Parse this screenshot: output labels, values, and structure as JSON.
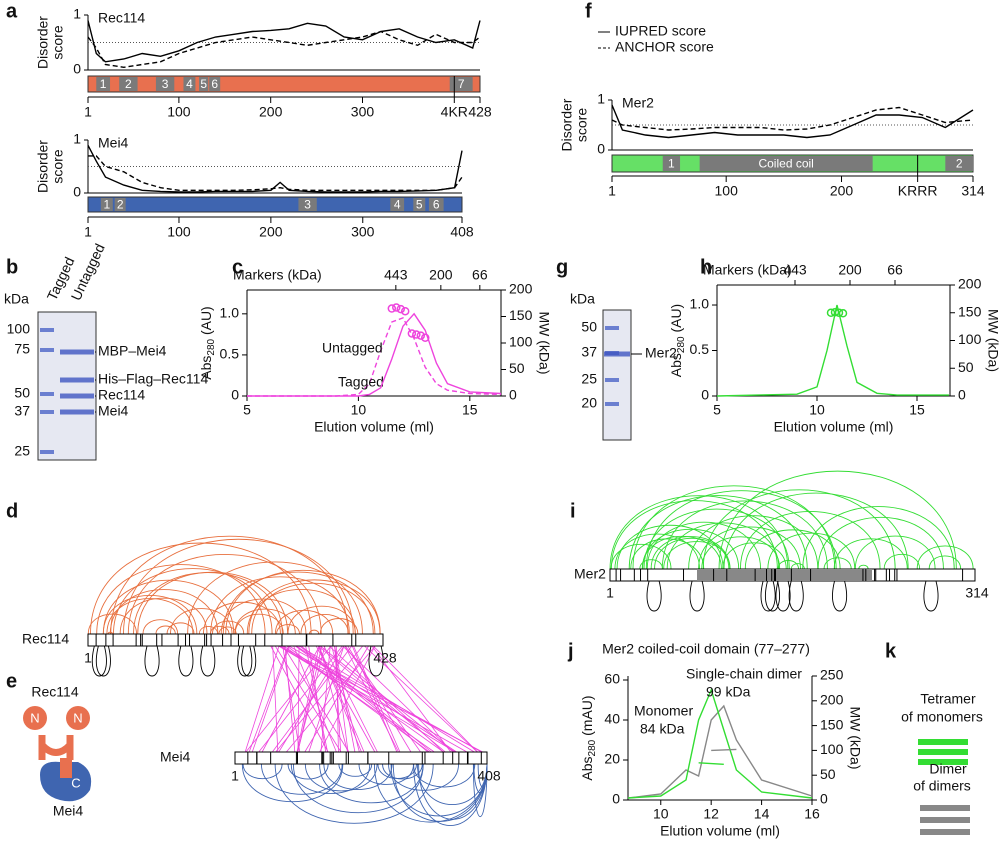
{
  "panels": [
    "a",
    "b",
    "c",
    "d",
    "e",
    "f",
    "g",
    "h",
    "i",
    "j",
    "k"
  ],
  "chart_data": [
    {
      "type": "disorder",
      "protein": "Rec114",
      "ylabel": [
        "Disorder",
        "score"
      ],
      "xlim": [
        1,
        428
      ],
      "ylim": [
        0,
        1
      ],
      "xticks": [
        1,
        100,
        200,
        300,
        428
      ],
      "yticks": [
        0,
        1
      ],
      "threshold": 0.5,
      "x": [
        1,
        10,
        20,
        40,
        60,
        80,
        100,
        120,
        140,
        160,
        180,
        200,
        220,
        240,
        260,
        280,
        300,
        320,
        340,
        360,
        380,
        400,
        420,
        428
      ],
      "series": [
        {
          "color": "#000000",
          "dash": false,
          "values": [
            0.9,
            0.3,
            0.15,
            0.2,
            0.3,
            0.25,
            0.35,
            0.5,
            0.6,
            0.65,
            0.7,
            0.72,
            0.75,
            0.85,
            0.8,
            0.6,
            0.55,
            0.7,
            0.75,
            0.6,
            0.5,
            0.55,
            0.4,
            0.9
          ]
        },
        {
          "color": "#000000",
          "dash": true,
          "values": [
            0.6,
            0.4,
            0.1,
            0.05,
            0.1,
            0.15,
            0.3,
            0.4,
            0.5,
            0.55,
            0.6,
            0.55,
            0.5,
            0.45,
            0.5,
            0.55,
            0.6,
            0.7,
            0.55,
            0.45,
            0.65,
            0.5,
            0.5,
            0.6
          ]
        }
      ],
      "bar_color": "#e8704f",
      "domain_color": "#7a7a7a",
      "domains": [
        {
          "label": "1",
          "start": 10,
          "end": 25
        },
        {
          "label": "2",
          "start": 35,
          "end": 55
        },
        {
          "label": "3",
          "start": 75,
          "end": 95
        },
        {
          "label": "4",
          "start": 105,
          "end": 118
        },
        {
          "label": "5",
          "start": 122,
          "end": 132
        },
        {
          "label": "6",
          "start": 133,
          "end": 145
        },
        {
          "label": "7",
          "start": 395,
          "end": 420
        }
      ],
      "site": {
        "label": "4KR",
        "position": 400
      }
    },
    {
      "type": "disorder",
      "protein": "Mei4",
      "ylabel": [
        "Disorder",
        "score"
      ],
      "xlim": [
        1,
        408
      ],
      "ylim": [
        0,
        1
      ],
      "xticks": [
        1,
        100,
        200,
        300,
        408
      ],
      "yticks": [
        0,
        1
      ],
      "threshold": 0.5,
      "x": [
        1,
        10,
        20,
        40,
        60,
        80,
        100,
        120,
        140,
        160,
        180,
        200,
        210,
        220,
        240,
        260,
        280,
        300,
        320,
        340,
        360,
        380,
        400,
        408
      ],
      "series": [
        {
          "color": "#000000",
          "dash": false,
          "values": [
            0.9,
            0.6,
            0.3,
            0.15,
            0.05,
            0.03,
            0.02,
            0.02,
            0.03,
            0.03,
            0.03,
            0.05,
            0.2,
            0.05,
            0.03,
            0.02,
            0.02,
            0.02,
            0.03,
            0.03,
            0.04,
            0.05,
            0.1,
            0.8
          ]
        },
        {
          "color": "#000000",
          "dash": true,
          "values": [
            0.7,
            0.7,
            0.5,
            0.4,
            0.2,
            0.1,
            0.05,
            0.05,
            0.05,
            0.05,
            0.06,
            0.08,
            0.1,
            0.07,
            0.05,
            0.05,
            0.05,
            0.05,
            0.05,
            0.05,
            0.05,
            0.05,
            0.1,
            0.3
          ]
        }
      ],
      "bar_color": "#3f65b0",
      "domain_color": "#7a7a7a",
      "domains": [
        {
          "label": "1",
          "start": 15,
          "end": 28
        },
        {
          "label": "2",
          "start": 30,
          "end": 42
        },
        {
          "label": "3",
          "start": 230,
          "end": 250
        },
        {
          "label": "4",
          "start": 330,
          "end": 345
        },
        {
          "label": "5",
          "start": 355,
          "end": 368
        },
        {
          "label": "6",
          "start": 372,
          "end": 388
        }
      ]
    },
    {
      "type": "disorder",
      "protein": "Mer2",
      "ylabel": [
        "Disorder",
        "score"
      ],
      "xlim": [
        1,
        314
      ],
      "ylim": [
        0,
        1
      ],
      "xticks": [
        1,
        100,
        200,
        314
      ],
      "yticks": [
        0,
        1
      ],
      "threshold": 0.5,
      "x": [
        1,
        10,
        30,
        50,
        70,
        90,
        110,
        130,
        150,
        170,
        190,
        210,
        230,
        250,
        270,
        290,
        314
      ],
      "series": [
        {
          "name": "IUPRED score",
          "color": "#000000",
          "dash": false,
          "values": [
            0.9,
            0.4,
            0.3,
            0.25,
            0.3,
            0.35,
            0.3,
            0.3,
            0.3,
            0.25,
            0.3,
            0.5,
            0.7,
            0.7,
            0.65,
            0.45,
            0.8
          ]
        },
        {
          "name": "ANCHOR score",
          "color": "#000000",
          "dash": true,
          "values": [
            0.6,
            0.5,
            0.45,
            0.4,
            0.42,
            0.45,
            0.45,
            0.45,
            0.4,
            0.42,
            0.5,
            0.65,
            0.8,
            0.85,
            0.7,
            0.55,
            0.6
          ]
        }
      ],
      "bar_color": "#66e066",
      "domain_color": "#7a7a7a",
      "domains": [
        {
          "label": "1",
          "start": 45,
          "end": 60
        },
        {
          "label": "Coiled coil",
          "start": 77,
          "end": 227
        },
        {
          "label": "2",
          "start": 290,
          "end": 314
        }
      ],
      "site": {
        "label": "KRRR",
        "position": 266
      }
    },
    {
      "type": "elution",
      "xlabel": "Elution volume (ml)",
      "ylabel": [
        "Abs",
        "280",
        " (AU)"
      ],
      "y2label": "MW (kDa)",
      "top_label": "Markers (kDa)",
      "markers": [
        {
          "value": 11.68,
          "label": "443"
        },
        {
          "value": 13.7,
          "label": "200"
        },
        {
          "value": 15.45,
          "label": "66"
        }
      ],
      "xlim": [
        5,
        16.4
      ],
      "ylim": [
        0,
        1.29
      ],
      "y2lim": [
        0,
        200
      ],
      "xticks": [
        5,
        10,
        15
      ],
      "yticks": [
        0,
        0.5,
        {
          "value": 1,
          "label": "1.0"
        }
      ],
      "y2ticks": [
        0,
        50,
        100,
        150,
        200
      ],
      "x": [
        5,
        7,
        9,
        10,
        10.5,
        11,
        11.5,
        12,
        12.5,
        13,
        13.5,
        14,
        15,
        16.4
      ],
      "series": [
        {
          "name": "Tagged",
          "color": "#ee44dd",
          "dash": true,
          "values": [
            0,
            0,
            0,
            0.02,
            0.15,
            0.55,
            0.9,
            0.95,
            0.7,
            0.35,
            0.15,
            0.07,
            0.03,
            0.02
          ]
        },
        {
          "name": "Untagged",
          "color": "#ee44dd",
          "dash": false,
          "values": [
            0,
            0,
            0,
            0,
            0.02,
            0.1,
            0.45,
            0.85,
            1.0,
            0.8,
            0.4,
            0.15,
            0.05,
            0.03
          ]
        },
        {
          "axis": "y2",
          "marker": "circle",
          "color": "#ee44dd",
          "x": [
            11.5,
            11.7,
            11.9,
            12.1
          ],
          "values": [
            165,
            167,
            164,
            160
          ]
        },
        {
          "axis": "y2",
          "marker": "circle",
          "color": "#ee44dd",
          "x": [
            12.4,
            12.6,
            12.8,
            13.0
          ],
          "values": [
            118,
            116,
            114,
            110
          ]
        }
      ]
    },
    {
      "type": "elution",
      "xlabel": "Elution volume (ml)",
      "ylabel": [
        "Abs",
        "280",
        " (AU)"
      ],
      "y2label": "MW (kDa)",
      "top_label": "Markers (kDa)",
      "markers": [
        {
          "value": 8.9,
          "label": "443"
        },
        {
          "value": 11.65,
          "label": "200"
        },
        {
          "value": 13.9,
          "label": "66"
        }
      ],
      "xlim": [
        5,
        16.65
      ],
      "ylim": [
        0,
        1.22
      ],
      "y2lim": [
        0,
        200
      ],
      "xticks": [
        5,
        10,
        15
      ],
      "yticks": [
        0,
        0.5,
        {
          "value": 1,
          "label": "1.0"
        }
      ],
      "y2ticks": [
        0,
        50,
        100,
        150,
        200
      ],
      "x": [
        5,
        7,
        9,
        10,
        10.5,
        11,
        11.5,
        12,
        13,
        14,
        16.6
      ],
      "series": [
        {
          "color": "#33dd33",
          "dash": false,
          "values": [
            0,
            0.01,
            0.02,
            0.1,
            0.5,
            1.0,
            0.55,
            0.15,
            0.03,
            0.01,
            0.01
          ]
        },
        {
          "axis": "y2",
          "marker": "circle",
          "color": "#33dd33",
          "x": [
            10.7,
            10.9,
            11.1,
            11.3
          ],
          "values": [
            150,
            151,
            150,
            149
          ]
        }
      ]
    },
    {
      "type": "elution",
      "title": "Mer2 coiled-coil domain (77–277)",
      "xlabel": "Elution volume (ml)",
      "ylabel": [
        "Abs",
        "280",
        " (mAU)"
      ],
      "y2label": "MW (kDa)",
      "annotations": [
        "Monomer",
        "84 kDa",
        "Single-chain dimer",
        "99 kDa"
      ],
      "xlim": [
        8.7,
        16
      ],
      "ylim": [
        0,
        62
      ],
      "y2lim": [
        0,
        250
      ],
      "xticks": [
        10,
        12,
        14,
        16
      ],
      "yticks": [
        0,
        20,
        40,
        60
      ],
      "y2ticks": [
        0,
        50,
        100,
        150,
        200,
        250
      ],
      "x": [
        8.7,
        10,
        11,
        11.5,
        12,
        12.5,
        13,
        14,
        16
      ],
      "series": [
        {
          "color": "#888888",
          "dash": false,
          "values": [
            1,
            3,
            15,
            12,
            40,
            47,
            30,
            10,
            2
          ]
        },
        {
          "color": "#33dd33",
          "dash": false,
          "values": [
            1,
            2,
            10,
            40,
            55,
            35,
            15,
            4,
            1
          ]
        },
        {
          "axis": "y2",
          "color": "#33dd33",
          "x": [
            11.5,
            12.5
          ],
          "values": [
            75,
            72
          ]
        },
        {
          "axis": "y2",
          "color": "#888888",
          "x": [
            12,
            13
          ],
          "values": [
            100,
            102
          ]
        }
      ]
    }
  ],
  "gels": [
    {
      "unit": "kDa",
      "lanes": [
        "Tagged",
        "Untagged"
      ],
      "ladder": [
        100,
        75,
        50,
        37,
        25
      ],
      "bands": [
        "MBP–Mei4",
        "His–Flag–Rec114",
        "Rec114",
        "Mei4"
      ]
    },
    {
      "unit": "kDa",
      "ladder": [
        50,
        37,
        25,
        20
      ],
      "bands": [
        "Mer2"
      ]
    }
  ],
  "crosslinks": [
    {
      "protein": "Rec114",
      "start": 1,
      "end": 428
    },
    {
      "protein": "Mei4",
      "start": 1,
      "end": 408
    },
    {
      "protein": "Mer2",
      "start": 1,
      "end": 314
    }
  ],
  "schematic": {
    "proteins": [
      "Rec114",
      "Mei4"
    ],
    "termini": [
      "N",
      "N",
      "C"
    ]
  },
  "assemblies": [
    [
      "Tetramer",
      "of monomers"
    ],
    [
      "Dimer",
      "of dimers"
    ]
  ]
}
